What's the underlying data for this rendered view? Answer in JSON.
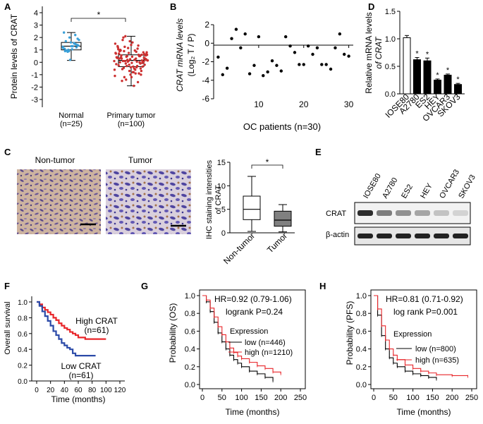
{
  "panels": {
    "A": {
      "label": "A",
      "ylabel": "Protein levels of CRAT",
      "yticks": [
        "4",
        "3",
        "2",
        "1",
        "0",
        "-1",
        "-2",
        "-3"
      ],
      "groups": [
        {
          "name": "Normal",
          "n": "(n=25)",
          "color": "#3aa0d8",
          "box": {
            "q1": 1.0,
            "median": 1.3,
            "q3": 1.6,
            "whisker_low": 0.15,
            "whisker_high": 2.4
          }
        },
        {
          "name": "Primary tumor",
          "n": "(n=100)",
          "color": "#cc3030",
          "box": {
            "q1": -0.35,
            "median": 0.15,
            "q3": 0.6,
            "whisker_low": -1.9,
            "whisker_high": 2.1
          }
        }
      ],
      "significance": "*"
    },
    "B": {
      "label": "B",
      "ylabel_line1": "CRAT mRNA levels",
      "ylabel_line2": "(Log₂ T / P)",
      "xlabel": "OC patients (n=30)",
      "yticks": [
        "2",
        "0",
        "-2",
        "-4",
        "-6"
      ],
      "xticks": [
        "10",
        "20",
        "30"
      ]
    },
    "C": {
      "label": "C",
      "image_titles": [
        "Non-tumor",
        "Tumor"
      ],
      "ylabel_line1": "IHC staining intensities",
      "ylabel_line2": "of CRAT",
      "yticks": [
        "0",
        "5",
        "10",
        "15"
      ],
      "categories": [
        "Non-tumor",
        "Tumor"
      ],
      "significance": "*"
    },
    "D": {
      "label": "D",
      "ylabel_line1": "Relative mRNA levels",
      "ylabel_line2": "of CRAT",
      "yticks": [
        "1.5",
        "1.0",
        "0.5",
        "0.0"
      ],
      "significance": "*"
    },
    "E": {
      "label": "E",
      "lanes": [
        "IOSE80",
        "A2780",
        "ES2",
        "HEY",
        "OVCAR3",
        "SKOV3"
      ],
      "rows": [
        "CRAT",
        "β-actin"
      ],
      "crat_intensity": [
        0.95,
        0.55,
        0.45,
        0.35,
        0.2,
        0.12
      ]
    },
    "F": {
      "label": "F",
      "ylabel": "Overall survival",
      "xlabel": "Time (months)",
      "yticks": [
        "1.0",
        "0.8",
        "0.6",
        "0.4",
        "0.2",
        "0.0"
      ],
      "xticks": [
        "0",
        "20",
        "40",
        "60",
        "80",
        "100",
        "120"
      ],
      "high_label": "High CRAT",
      "high_n": "(n=61)",
      "low_label": "Low CRAT",
      "low_n": "(n=61)",
      "high_color": "#e8262a",
      "low_color": "#2b4aa8"
    },
    "G": {
      "label": "G",
      "ylabel": "Probability (OS)",
      "xlabel": "Time (months)",
      "hr": "HR=0.92 (0.79-1.06)",
      "logrank": "logrank P=0.24",
      "legend_title": "Expression",
      "low": "low  (n=446)",
      "high": "high (n=1210)",
      "yticks": [
        "1.0",
        "0.8",
        "0.6",
        "0.4",
        "0.2",
        "0.0"
      ],
      "xticks": [
        "0",
        "50",
        "100",
        "150",
        "200",
        "250"
      ]
    },
    "H": {
      "label": "H",
      "ylabel": "Probability (PFS)",
      "xlabel": "Time (months)",
      "hr": "HR=0.81 (0.71-0.92)",
      "logrank": "log rank P=0.001",
      "legend_title": "Expression",
      "low": "low  (n=800)",
      "high": "high (n=635)",
      "yticks": [
        "1.0",
        "0.8",
        "0.6",
        "0.4",
        "0.2",
        "0.0"
      ],
      "xticks": [
        "0",
        "50",
        "100",
        "150",
        "200",
        "250"
      ]
    }
  },
  "chart_data": [
    {
      "panel": "A",
      "type": "box",
      "categories": [
        "Normal (n=25)",
        "Primary tumor (n=100)"
      ],
      "ylabel": "Protein levels of CRAT",
      "ylim": [
        -3,
        4
      ],
      "series": [
        {
          "name": "Normal",
          "values": [
            1.25,
            0.9,
            2.2,
            1.1,
            1.6,
            1.4,
            0.95,
            1.3,
            1.8,
            1.0,
            1.5,
            2.4,
            0.2,
            1.2,
            1.7,
            1.05,
            1.35,
            0.85,
            1.55,
            1.15,
            2.0,
            1.45,
            0.9,
            1.3,
            1.9
          ]
        },
        {
          "name": "Primary tumor",
          "values": [
            0.1,
            -0.3,
            0.5,
            1.2,
            -1.0,
            0.0,
            0.3,
            -0.5,
            0.8,
            2.1,
            -1.6,
            0.4,
            -0.2,
            0.6,
            1.0,
            -0.8,
            0.2,
            0.9,
            -0.4,
            1.5,
            0.05,
            -0.1,
            0.7,
            -1.2,
            0.35,
            1.8,
            -0.6,
            0.15,
            0.45,
            -0.9,
            1.3,
            0.25,
            -0.35,
            0.55,
            -1.9,
            0.65,
            0.1,
            1.1,
            -0.15,
            0.75,
            -0.7,
            0.0,
            1.6,
            0.3,
            -0.45,
            0.85,
            -1.1,
            0.2,
            0.5,
            -0.25,
            1.4,
            0.05,
            -0.55,
            0.95,
            0.15,
            -1.4,
            0.6,
            0.35,
            1.7,
            -0.05,
            0.4,
            -0.8,
            0.25,
            1.25,
            -0.3,
            0.7,
            0.1,
            -1.0,
            0.9,
            0.45,
            -0.2,
            2.0,
            0.3,
            -0.6,
            0.5,
            0.0,
            1.05,
            -0.4,
            0.8,
            -1.5,
            0.2,
            0.6,
            -0.1,
            1.35,
            0.4,
            -0.7,
            0.15,
            0.95,
            -0.35,
            0.55,
            -1.2,
            0.05,
            0.75,
            1.15,
            -0.5,
            0.3,
            -0.05,
            0.65,
            0.1,
            -0.9
          ]
        }
      ]
    },
    {
      "panel": "B",
      "type": "scatter",
      "xlabel": "OC patients (n=30)",
      "xlim": [
        0,
        31
      ],
      "ylim": [
        -6,
        2
      ],
      "x": [
        1,
        2,
        3,
        4,
        5,
        6,
        7,
        8,
        9,
        10,
        11,
        12,
        13,
        14,
        15,
        16,
        17,
        18,
        19,
        20,
        21,
        22,
        23,
        24,
        25,
        26,
        27,
        28,
        29,
        30
      ],
      "y": [
        -1.5,
        -3.4,
        -2.7,
        0.5,
        1.5,
        -0.5,
        1.0,
        -3.3,
        -2.4,
        0.7,
        -3.5,
        -3.1,
        -1.9,
        -2.4,
        -3.0,
        0.7,
        -0.3,
        -1.0,
        -2.3,
        -2.3,
        -0.3,
        -1.2,
        -0.5,
        -2.3,
        -2.3,
        -2.8,
        -0.5,
        1.0,
        -1.2,
        -1.4
      ]
    },
    {
      "panel": "C",
      "type": "box",
      "categories": [
        "Non-tumor",
        "Tumor"
      ],
      "ylim": [
        0,
        15
      ],
      "series": [
        {
          "name": "Non-tumor",
          "whisker_low": 0.3,
          "q1": 2.8,
          "median": 5.0,
          "q3": 7.8,
          "whisker_high": 12.0
        },
        {
          "name": "Tumor",
          "whisker_low": 0.2,
          "q1": 1.4,
          "median": 2.7,
          "q3": 4.6,
          "whisker_high": 6.0
        }
      ]
    },
    {
      "panel": "D",
      "type": "bar",
      "categories": [
        "IOSE80",
        "A2780",
        "ES2",
        "HEY",
        "OVCAR3",
        "SKOV3"
      ],
      "values": [
        1.02,
        0.62,
        0.6,
        0.25,
        0.34,
        0.17
      ],
      "errors": [
        0.04,
        0.04,
        0.05,
        0.02,
        0.02,
        0.02
      ],
      "ylim": [
        0,
        1.5
      ]
    },
    {
      "panel": "F",
      "type": "line",
      "xlabel": "Time (months)",
      "ylabel": "Overall survival",
      "xlim": [
        0,
        120
      ],
      "ylim": [
        0,
        1
      ],
      "series": [
        {
          "name": "High CRAT",
          "x": [
            0,
            4,
            8,
            12,
            16,
            20,
            24,
            28,
            32,
            36,
            40,
            44,
            48,
            52,
            56,
            60,
            70,
            100
          ],
          "y": [
            1,
            0.97,
            0.93,
            0.9,
            0.87,
            0.84,
            0.8,
            0.77,
            0.73,
            0.7,
            0.67,
            0.65,
            0.62,
            0.6,
            0.58,
            0.55,
            0.53,
            0.53
          ]
        },
        {
          "name": "Low CRAT",
          "x": [
            0,
            4,
            8,
            12,
            16,
            20,
            24,
            28,
            32,
            36,
            40,
            44,
            48,
            52,
            56,
            60,
            70,
            85
          ],
          "y": [
            1,
            0.95,
            0.88,
            0.82,
            0.76,
            0.7,
            0.63,
            0.58,
            0.53,
            0.48,
            0.45,
            0.42,
            0.4,
            0.35,
            0.32,
            0.32,
            0.32,
            0.32
          ]
        }
      ]
    },
    {
      "panel": "G",
      "type": "line",
      "xlabel": "Time (months)",
      "ylabel": "Probability (OS)",
      "xlim": [
        0,
        250
      ],
      "ylim": [
        0,
        1
      ],
      "series": [
        {
          "name": "low",
          "x": [
            0,
            10,
            20,
            30,
            40,
            50,
            60,
            70,
            80,
            90,
            100,
            120,
            140,
            160,
            180
          ],
          "y": [
            1,
            0.93,
            0.82,
            0.7,
            0.58,
            0.48,
            0.4,
            0.33,
            0.28,
            0.24,
            0.2,
            0.15,
            0.12,
            0.08,
            0.04
          ]
        },
        {
          "name": "high",
          "x": [
            0,
            10,
            20,
            30,
            40,
            50,
            60,
            70,
            80,
            90,
            100,
            120,
            140,
            160,
            180,
            200
          ],
          "y": [
            1,
            0.95,
            0.86,
            0.76,
            0.65,
            0.56,
            0.48,
            0.41,
            0.36,
            0.32,
            0.29,
            0.25,
            0.21,
            0.18,
            0.14,
            0.12
          ]
        }
      ]
    },
    {
      "panel": "H",
      "type": "line",
      "xlabel": "Time (months)",
      "ylabel": "Probability (PFS)",
      "xlim": [
        0,
        250
      ],
      "ylim": [
        0,
        1
      ],
      "series": [
        {
          "name": "low",
          "x": [
            0,
            10,
            20,
            30,
            40,
            50,
            60,
            80,
            100,
            120,
            140,
            160
          ],
          "y": [
            1,
            0.78,
            0.55,
            0.4,
            0.3,
            0.24,
            0.2,
            0.15,
            0.12,
            0.1,
            0.08,
            0.06
          ]
        },
        {
          "name": "high",
          "x": [
            0,
            10,
            20,
            30,
            40,
            50,
            60,
            80,
            100,
            120,
            140,
            160,
            200,
            240
          ],
          "y": [
            1,
            0.85,
            0.66,
            0.5,
            0.4,
            0.33,
            0.28,
            0.22,
            0.18,
            0.15,
            0.13,
            0.11,
            0.1,
            0.09
          ]
        }
      ]
    }
  ]
}
